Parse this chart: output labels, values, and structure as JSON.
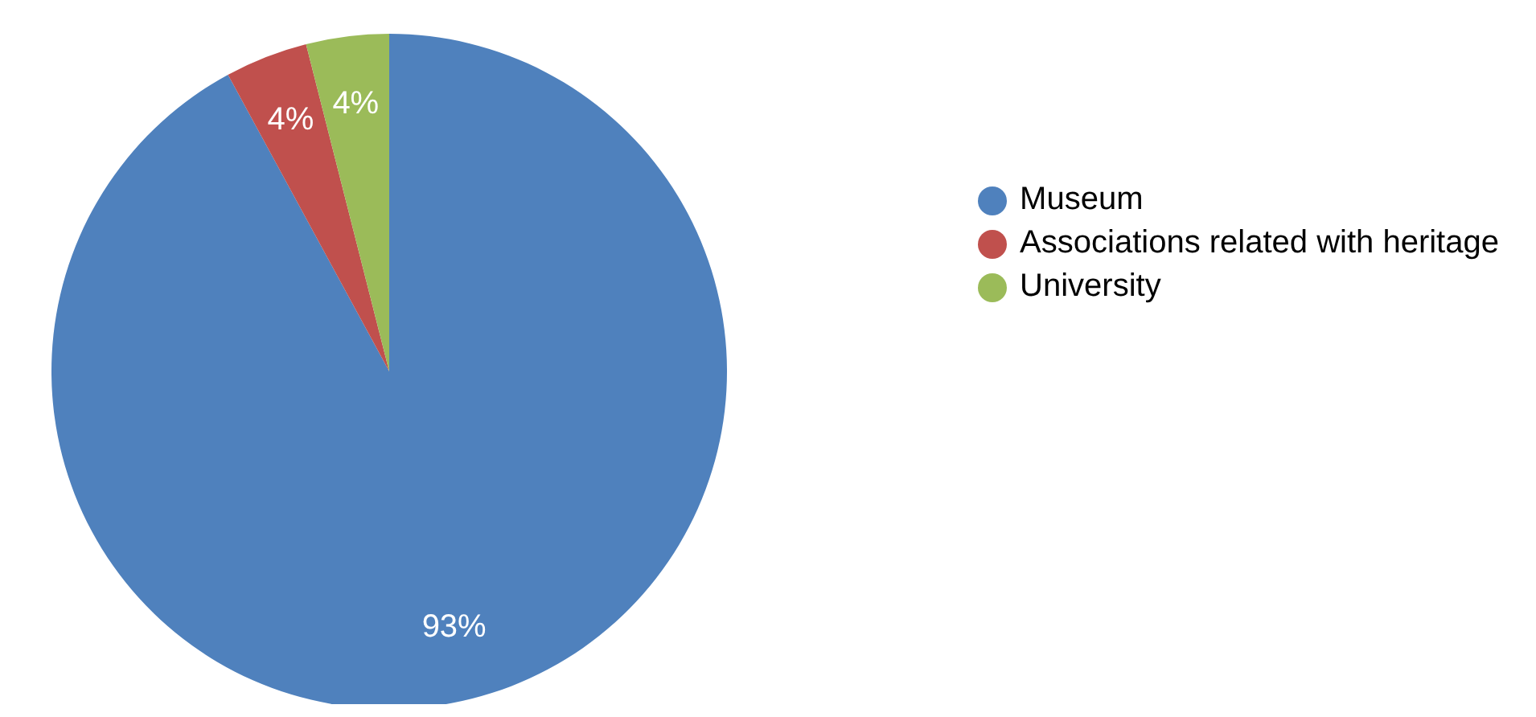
{
  "chart_data": {
    "type": "pie",
    "categories": [
      "Museum",
      "Associations related with heritage",
      "University"
    ],
    "values": [
      93,
      4,
      4
    ],
    "colors": [
      "#4f81bd",
      "#c0504d",
      "#9bbb59"
    ],
    "value_labels": [
      "93%",
      "4%",
      "4%"
    ],
    "legend": "right"
  }
}
